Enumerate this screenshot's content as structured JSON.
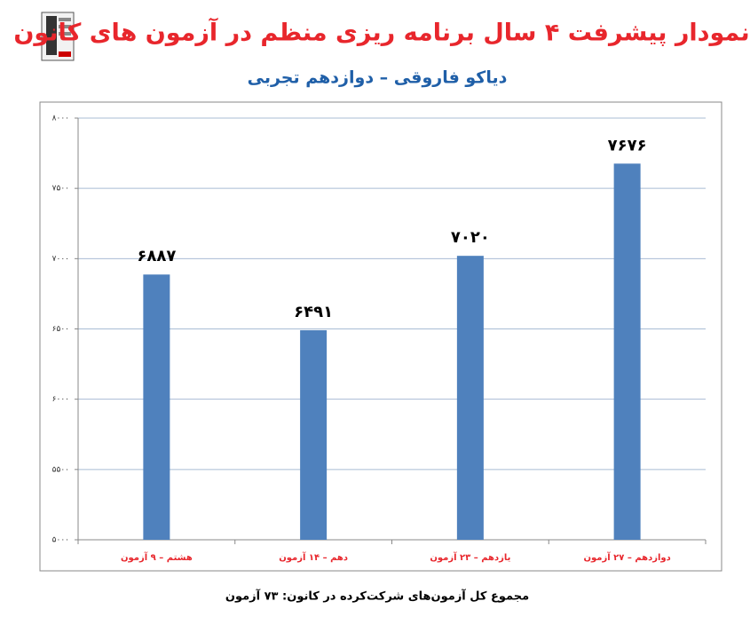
{
  "chart_data": {
    "type": "bar",
    "title": "نمودار پیشرفت ۴ سال برنامه ریزی منظم در آزمون های کانون",
    "subtitle": "دیاکو فاروقی – دوازدهم تجربی",
    "categories": [
      "هشتم – ۹ آزمون",
      "دهم – ۱۴ آزمون",
      "یازدهم – ۲۳ آزمون",
      "دوازدهم – ۲۷ آزمون"
    ],
    "values": [
      6887,
      6491,
      7020,
      7676
    ],
    "value_labels": [
      "۶۸۸۷",
      "۶۴۹۱",
      "۷۰۲۰",
      "۷۶۷۶"
    ],
    "color": "#4f81bd",
    "ylim": [
      5000,
      8000
    ],
    "yticks": [
      {
        "value": 5000,
        "label": "۵۰۰۰"
      },
      {
        "value": 5500,
        "label": "۵۵۰۰"
      },
      {
        "value": 6000,
        "label": "۶۰۰۰"
      },
      {
        "value": 6500,
        "label": "۶۵۰۰"
      },
      {
        "value": 7000,
        "label": "۷۰۰۰"
      },
      {
        "value": 7500,
        "label": "۷۵۰۰"
      },
      {
        "value": 8000,
        "label": "۸۰۰۰"
      }
    ],
    "grid": true,
    "footnote": "مجموع کل آزمون‌های شرکت‌کرده در کانون: ۷۳ آزمون"
  }
}
